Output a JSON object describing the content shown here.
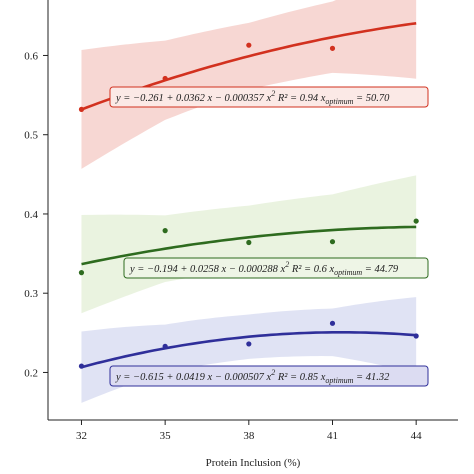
{
  "chart_data": {
    "type": "scatter",
    "xlabel": "Protein Inclusion (%)",
    "ylabel": "",
    "title": "",
    "xlim": [
      30.8,
      45.5
    ],
    "ylim": [
      0.14,
      0.67
    ],
    "xticks": [
      32,
      35,
      38,
      41,
      44
    ],
    "xtick_labels": [
      "32",
      "35",
      "38",
      "41",
      "44"
    ],
    "yticks": [
      0.2,
      0.3,
      0.4,
      0.5,
      0.6
    ],
    "ytick_labels": [
      "0.2",
      "0.3",
      "0.4",
      "0.5",
      "0.6"
    ],
    "grid": false,
    "series": [
      {
        "color": "#d2311f",
        "band_color": "#f4c9c4",
        "x": [
          32,
          35,
          38,
          41
        ],
        "y": [
          0.532,
          0.571,
          0.613,
          0.609
        ],
        "coef": [
          -0.261,
          0.0362,
          -0.000357
        ],
        "band_halfwidth": [
          0.075,
          0.05,
          0.042,
          0.045,
          0.07
        ],
        "equation": {
          "main": "y = −0.261 + 0.0362 x − 0.000357 x",
          "sup": "2",
          "r2": " R² = 0.94 x",
          "sub": "optimum",
          "tail": " = 50.70",
          "box_fill": "#fbe9e6",
          "box_stroke": "#d2311f"
        }
      },
      {
        "color": "#2e6b1f",
        "band_color": "#e3efd5",
        "x": [
          32,
          35,
          38,
          41,
          44
        ],
        "y": [
          0.326,
          0.379,
          0.364,
          0.365,
          0.391
        ],
        "coef": [
          -0.194,
          0.0258,
          -0.000288
        ],
        "band_halfwidth": [
          0.062,
          0.042,
          0.04,
          0.045,
          0.065
        ],
        "equation": {
          "main": "y = −0.194 + 0.0258 x − 0.000288 x",
          "sup": "2",
          "r2": " R² = 0.6 x",
          "sub": "optimum",
          "tail": " = 44.79",
          "box_fill": "#eef5e6",
          "box_stroke": "#2e6b1f"
        }
      },
      {
        "color": "#2f2f9a",
        "band_color": "#d6d9f0",
        "x": [
          32,
          35,
          38,
          41,
          44
        ],
        "y": [
          0.208,
          0.233,
          0.236,
          0.262,
          0.246
        ],
        "coef": [
          -0.615,
          0.0419,
          -0.000507
        ],
        "band_halfwidth": [
          0.045,
          0.03,
          0.028,
          0.03,
          0.048
        ],
        "equation": {
          "main": "y = −0.615 + 0.0419 x − 0.000507 x",
          "sup": "2",
          "r2": " R² = 0.85 x",
          "sub": "optimum",
          "tail": " = 41.32",
          "box_fill": "#dcdcf2",
          "box_stroke": "#2f2f9a"
        }
      }
    ]
  }
}
